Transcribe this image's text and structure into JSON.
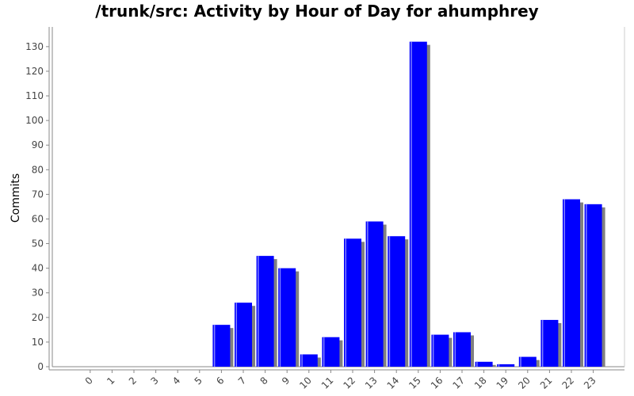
{
  "chart_data": {
    "type": "bar",
    "title": "/trunk/src: Activity by Hour of Day for ahumphrey",
    "xlabel": "",
    "ylabel": "Commits",
    "categories": [
      "0",
      "1",
      "2",
      "3",
      "4",
      "5",
      "6",
      "7",
      "8",
      "9",
      "10",
      "11",
      "12",
      "13",
      "14",
      "15",
      "16",
      "17",
      "18",
      "19",
      "20",
      "21",
      "22",
      "23"
    ],
    "values": [
      0,
      0,
      0,
      0,
      0,
      0,
      17,
      26,
      45,
      40,
      5,
      12,
      52,
      59,
      53,
      132,
      13,
      14,
      2,
      1,
      4,
      19,
      68,
      66
    ],
    "ylim": [
      0,
      138
    ],
    "yticks": [
      0,
      10,
      20,
      30,
      40,
      50,
      60,
      70,
      80,
      90,
      100,
      110,
      120,
      130
    ],
    "grid": false,
    "legend": "none",
    "colors": {
      "bar": "#0000ff",
      "bar_highlight": "#8080ff",
      "bar_shadow": "#808080",
      "axis": "#888888",
      "text": "#444444"
    }
  }
}
